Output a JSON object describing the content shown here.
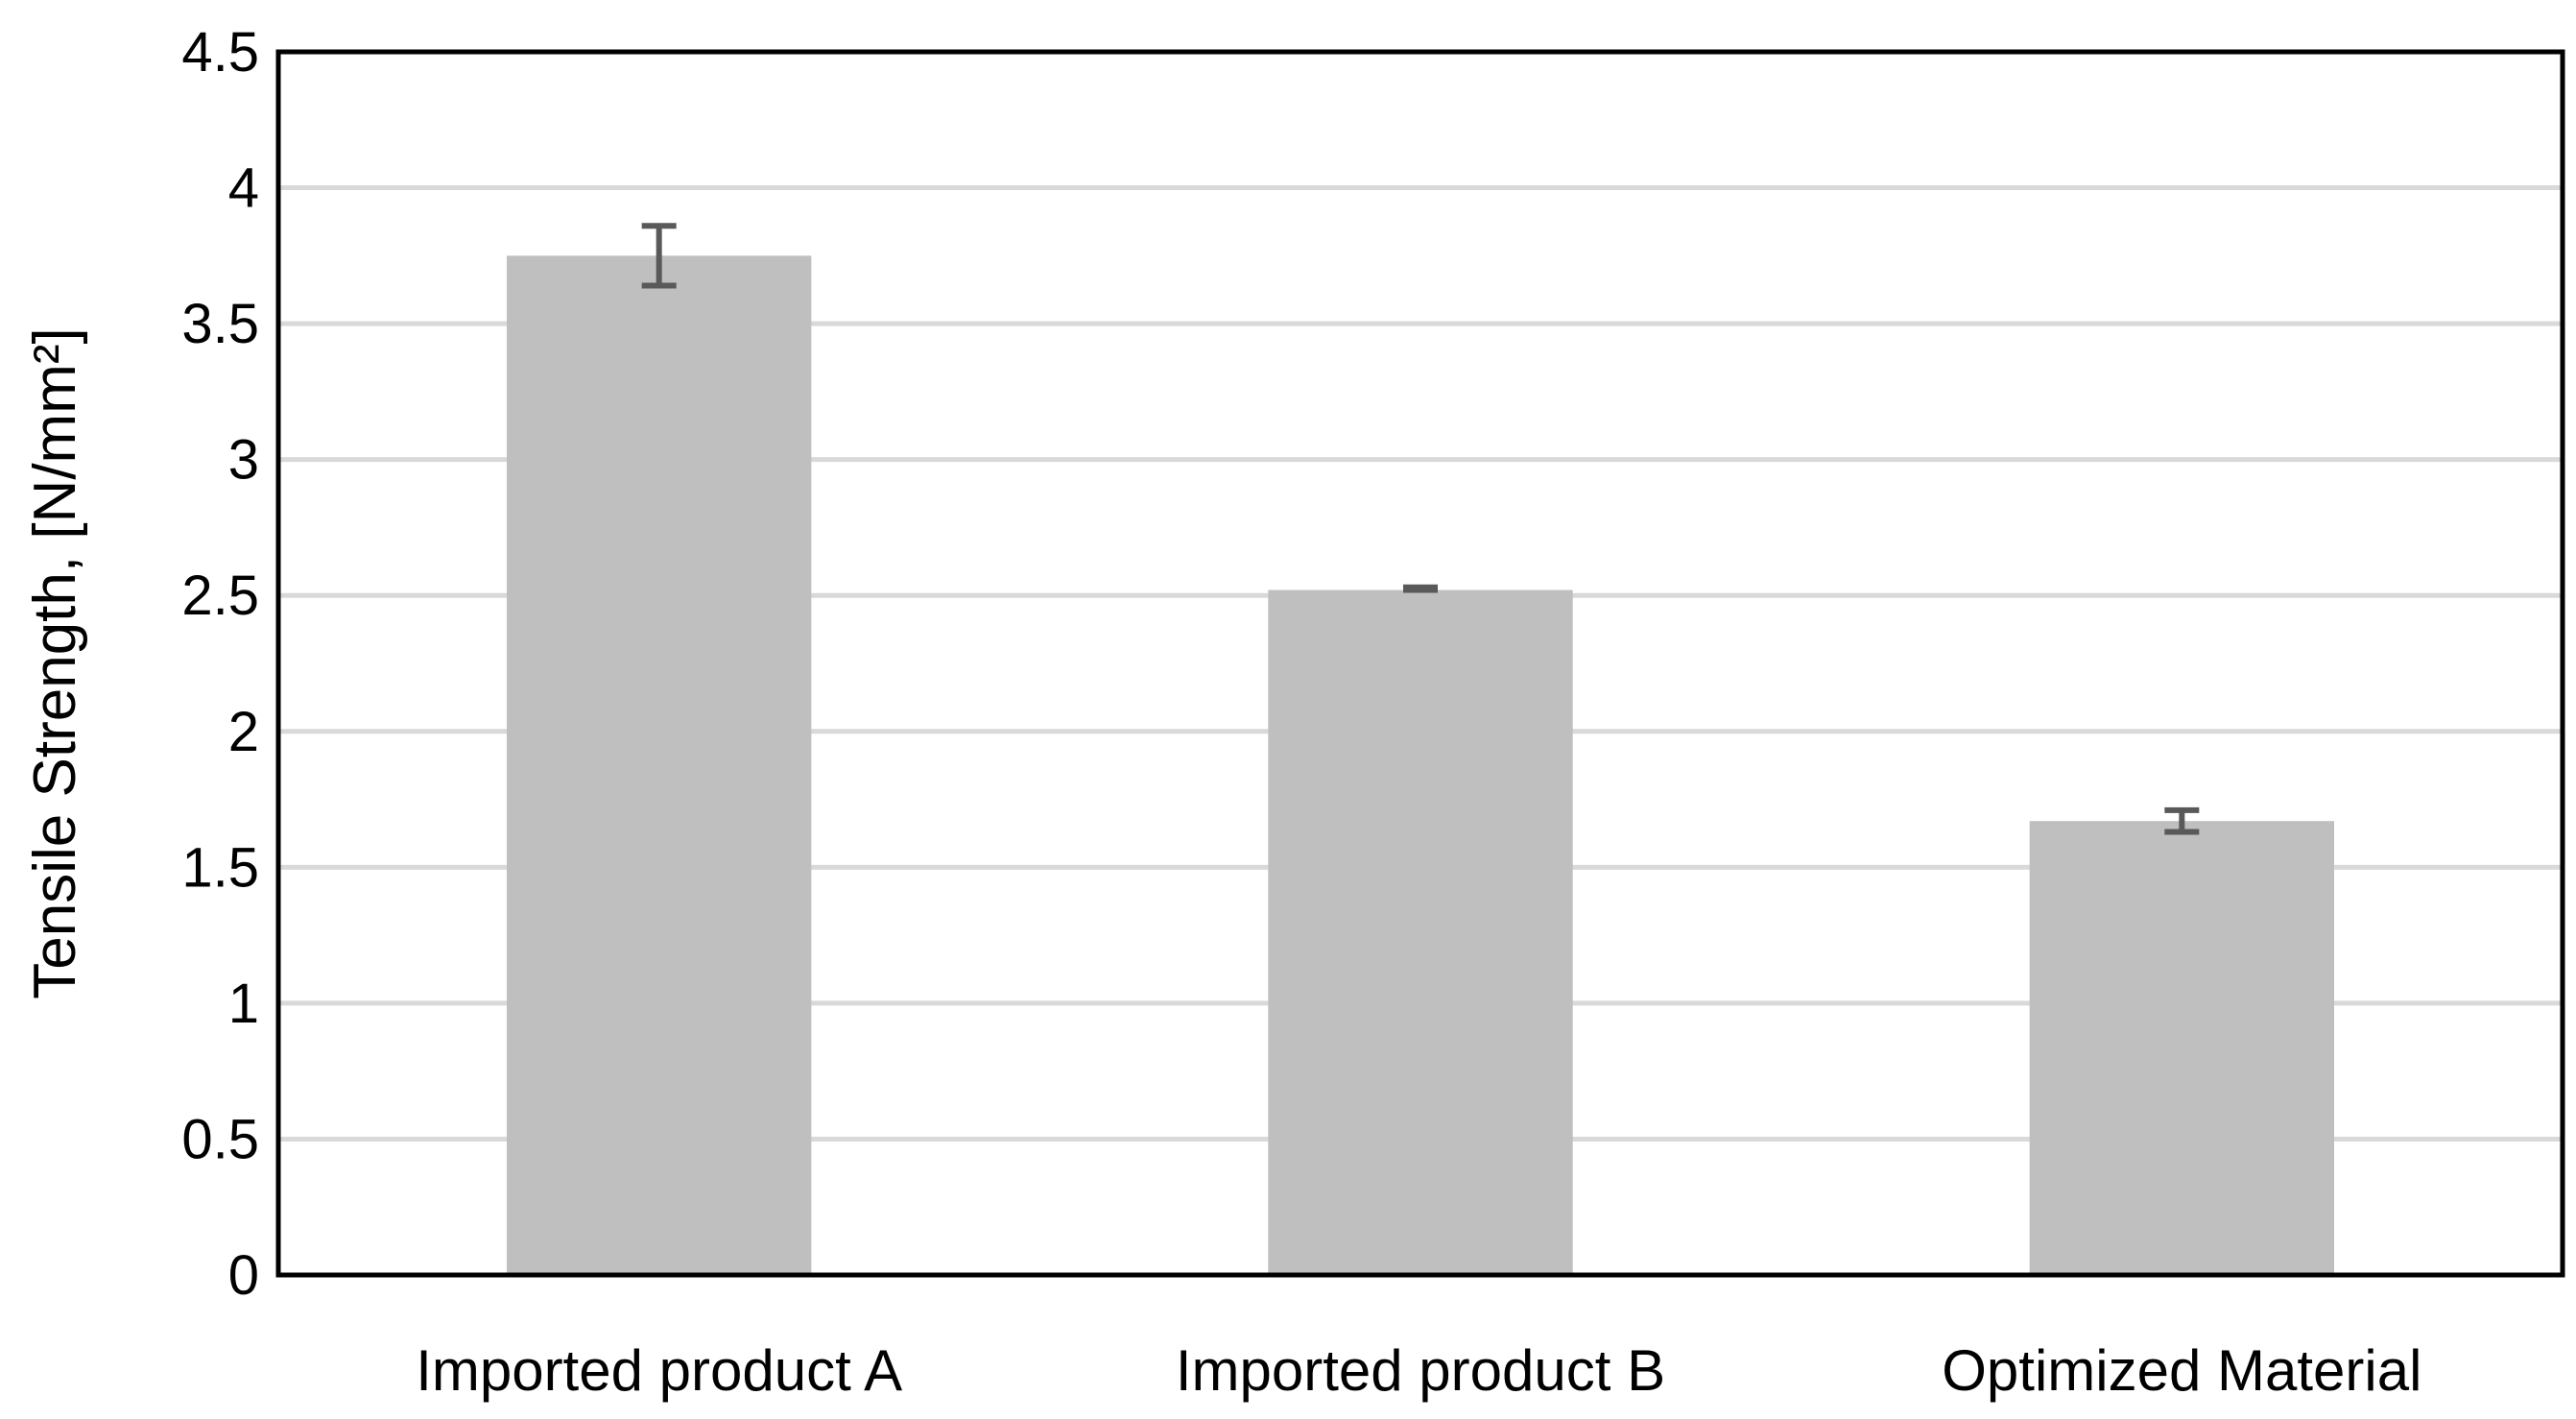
{
  "chart_data": {
    "type": "bar",
    "title": "",
    "xlabel": "",
    "ylabel": "Tensile Strength, [N/mm²]",
    "categories": [
      "Imported product A",
      "Imported product B",
      "Optimized Material"
    ],
    "values": [
      3.75,
      2.52,
      1.67
    ],
    "error_bars": [
      {
        "low": 3.64,
        "high": 3.86
      },
      {
        "low": 2.52,
        "high": 2.53
      },
      {
        "low": 1.63,
        "high": 1.71
      }
    ],
    "ylim": [
      0,
      4.5
    ],
    "yticks": [
      "0",
      "0.5",
      "1",
      "1.5",
      "2",
      "2.5",
      "3",
      "3.5",
      "4",
      "4.5"
    ],
    "ytick_values": [
      0,
      0.5,
      1,
      1.5,
      2,
      2.5,
      3,
      3.5,
      4,
      4.5
    ],
    "grid": true,
    "legend": "none",
    "colors": {
      "bar": "#bfbfbf",
      "grid": "#d9d9d9",
      "error_bar": "#595959",
      "frame": "#000000"
    }
  }
}
